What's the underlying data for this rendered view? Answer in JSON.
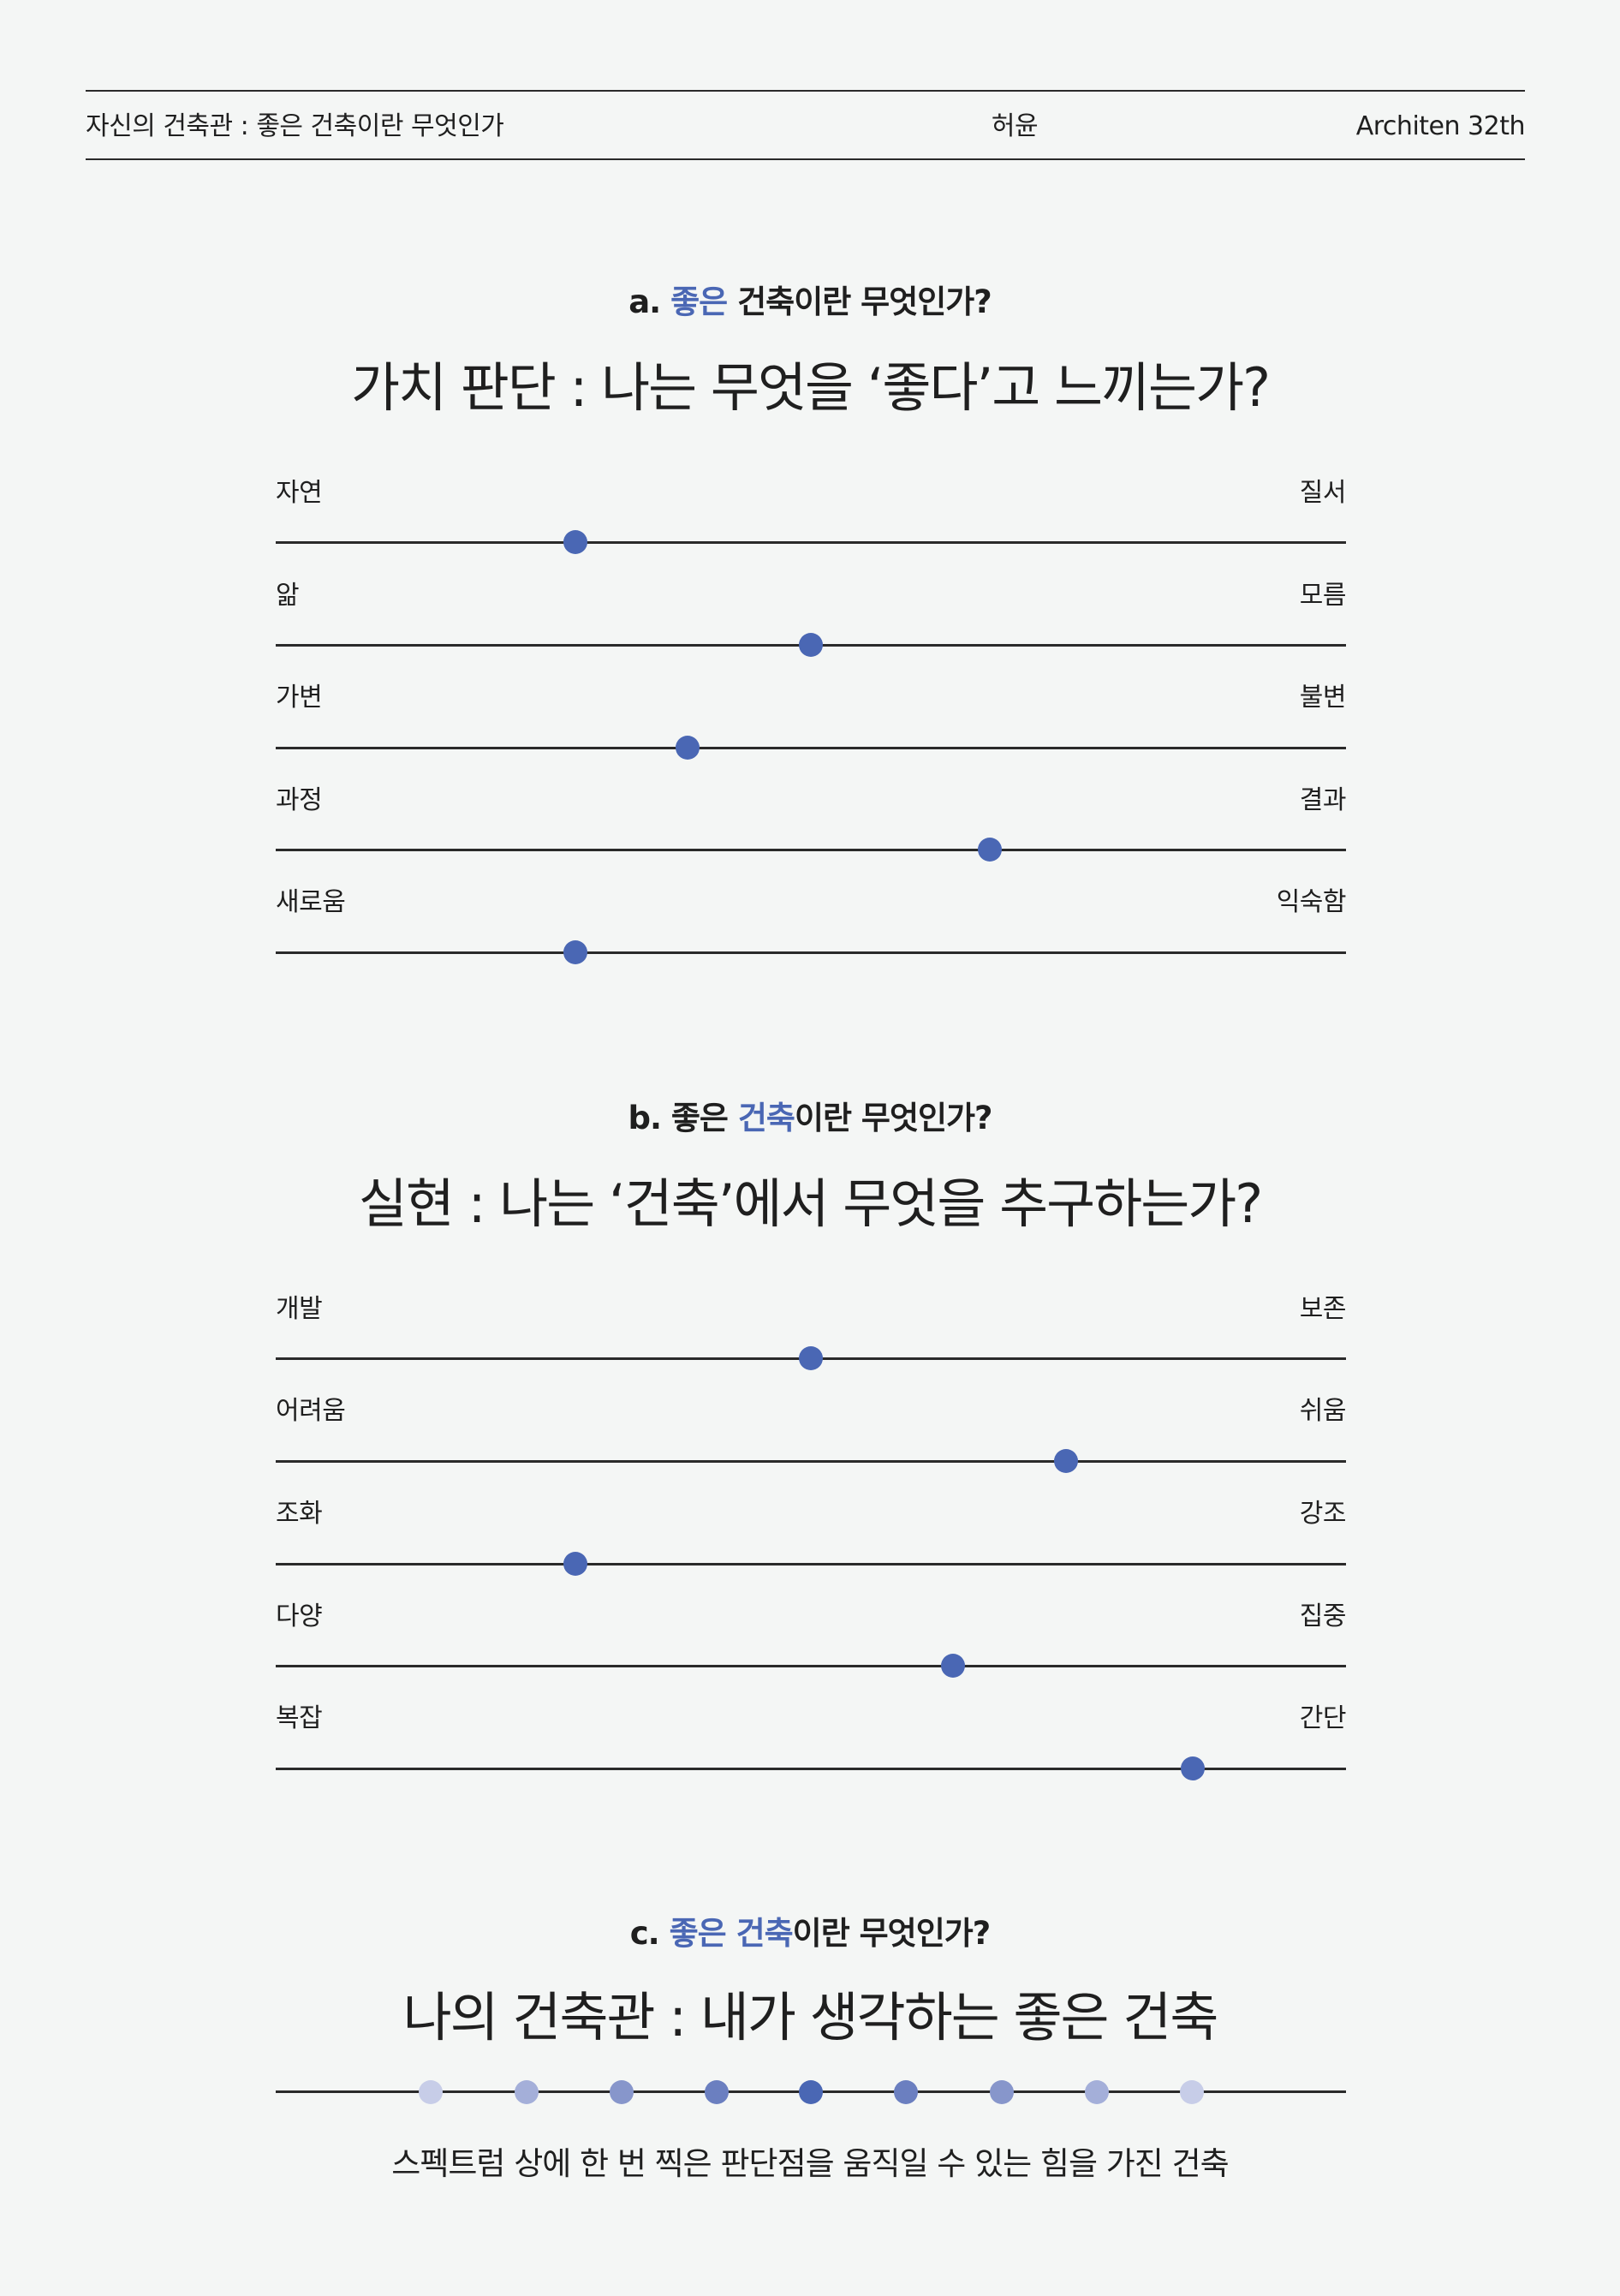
{
  "header": {
    "left": "자신의 건축관 : 좋은 건축이란 무엇인가",
    "center": "허윤",
    "right": "Architen 32th"
  },
  "sections": [
    {
      "eyebrow": {
        "prefix": "a. ",
        "highlight1": "좋은",
        "mid": " ",
        "highlight2": "",
        "rest": "건축이란 무엇인가?"
      },
      "title": "가치 판단 : 나는 무엇을 ‘좋다’고 느끼는가?",
      "sliders": [
        {
          "left": "자연",
          "right": "질서",
          "value": 0.28
        },
        {
          "left": "앎",
          "right": "모름",
          "value": 0.5
        },
        {
          "left": "가변",
          "right": "불변",
          "value": 0.385
        },
        {
          "left": "과정",
          "right": "결과",
          "value": 0.667
        },
        {
          "left": "새로움",
          "right": "익숙함",
          "value": 0.28
        }
      ]
    },
    {
      "eyebrow": {
        "prefix": "b. 좋은 ",
        "highlight1": "",
        "mid": "",
        "highlight2": "건축",
        "rest": "이란 무엇인가?"
      },
      "title": "실현 : 나는 ‘건축’에서 무엇을 추구하는가?",
      "sliders": [
        {
          "left": "개발",
          "right": "보존",
          "value": 0.5
        },
        {
          "left": "어려움",
          "right": "쉬움",
          "value": 0.738
        },
        {
          "left": "조화",
          "right": "강조",
          "value": 0.28
        },
        {
          "left": "다양",
          "right": "집중",
          "value": 0.633
        },
        {
          "left": "복잡",
          "right": "간단",
          "value": 0.857
        }
      ]
    }
  ],
  "section_c": {
    "eyebrow": {
      "prefix": "c. ",
      "highlight1": "좋은",
      "mid": " ",
      "highlight2": "건축",
      "rest": "이란 무엇인가?"
    },
    "title": "나의 건축관 : 내가 생각하는 좋은 건축",
    "dots": [
      {
        "value": 0.145,
        "color": "#c7cde8"
      },
      {
        "value": 0.234,
        "color": "#a4afd9"
      },
      {
        "value": 0.323,
        "color": "#8796cb"
      },
      {
        "value": 0.412,
        "color": "#6b7fc0"
      },
      {
        "value": 0.5,
        "color": "#4a67b4"
      },
      {
        "value": 0.589,
        "color": "#6b7fc0"
      },
      {
        "value": 0.678,
        "color": "#8796cb"
      },
      {
        "value": 0.767,
        "color": "#a4afd9"
      },
      {
        "value": 0.856,
        "color": "#c7cde8"
      }
    ],
    "caption": "스펙트럼 상에 한 번 찍은 판단점을 움직일 수 있는 힘을 가진 건축"
  }
}
